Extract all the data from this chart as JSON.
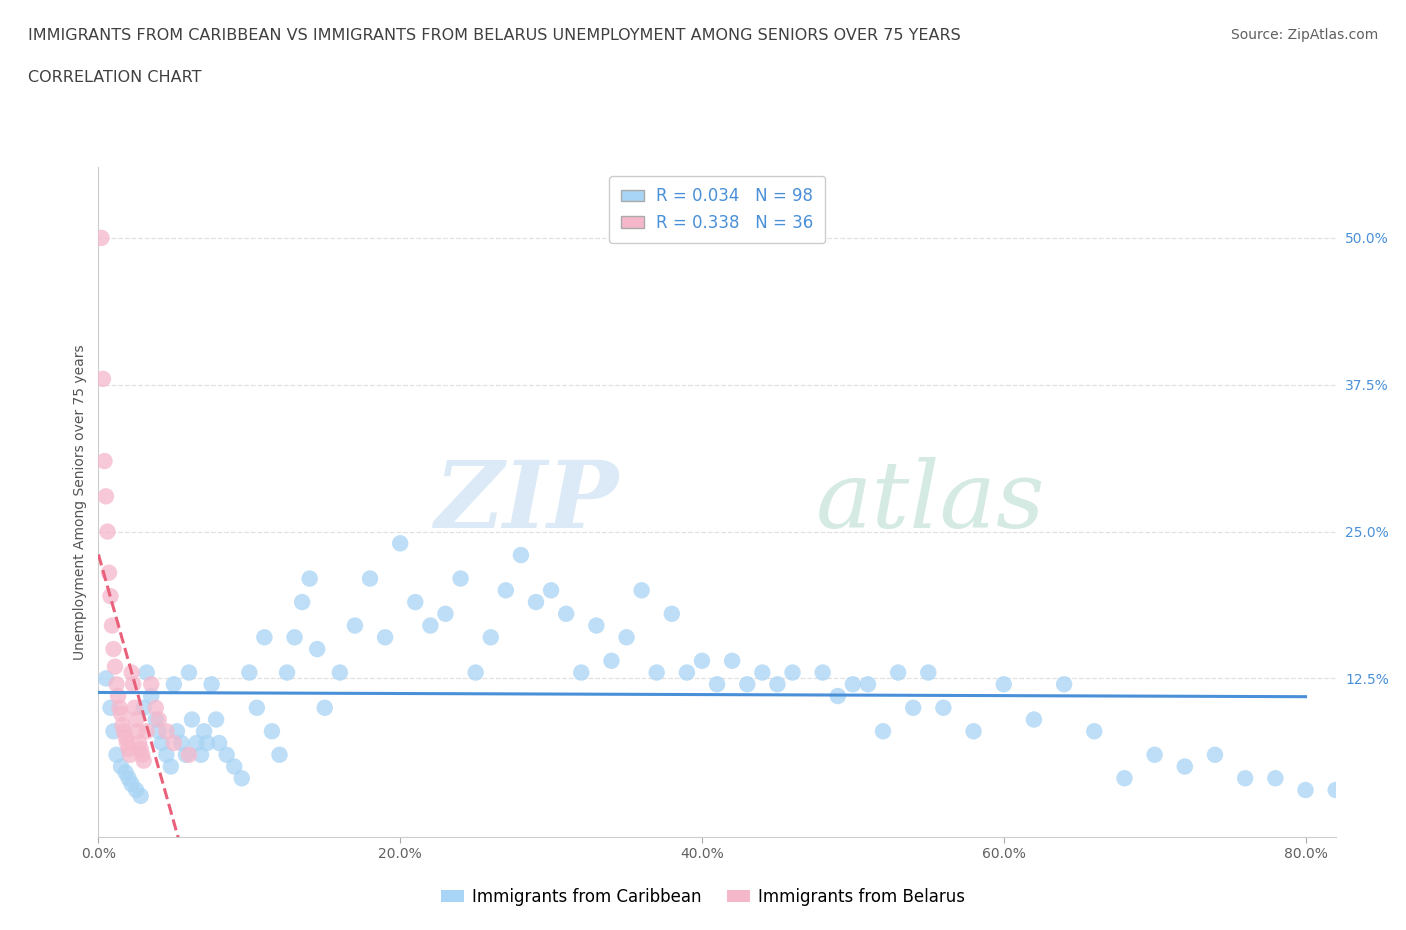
{
  "title_line1": "IMMIGRANTS FROM CARIBBEAN VS IMMIGRANTS FROM BELARUS UNEMPLOYMENT AMONG SENIORS OVER 75 YEARS",
  "title_line2": "CORRELATION CHART",
  "source_text": "Source: ZipAtlas.com",
  "ylabel": "Unemployment Among Seniors over 75 years",
  "watermark_zip": "ZIP",
  "watermark_atlas": "atlas",
  "legend_r1": "R = 0.034",
  "legend_n1": "N = 98",
  "legend_r2": "R = 0.338",
  "legend_n2": "N = 36",
  "legend_label1": "Immigrants from Caribbean",
  "legend_label2": "Immigrants from Belarus",
  "color_caribbean": "#a8d4f5",
  "color_belarus": "#f5b8cb",
  "color_line_caribbean": "#4a90d9",
  "color_line_belarus": "#e8607a",
  "color_title": "#404040",
  "color_source": "#606060",
  "color_legend_text": "#4a90d9",
  "color_ytick": "#4a90d9",
  "color_xtick": "#606060",
  "xlim": [
    0.0,
    0.82
  ],
  "ylim": [
    -0.01,
    0.56
  ],
  "xticks": [
    0.0,
    0.2,
    0.4,
    0.6,
    0.8
  ],
  "xtick_labels": [
    "0.0%",
    "20.0%",
    "40.0%",
    "60.0%",
    "80.0%"
  ],
  "yticks": [
    0.125,
    0.25,
    0.375,
    0.5
  ],
  "ytick_labels": [
    "12.5%",
    "25.0%",
    "37.5%",
    "50.0%"
  ],
  "caribbean_x": [
    0.005,
    0.008,
    0.01,
    0.012,
    0.015,
    0.018,
    0.02,
    0.022,
    0.025,
    0.028,
    0.03,
    0.032,
    0.035,
    0.038,
    0.04,
    0.042,
    0.045,
    0.048,
    0.05,
    0.052,
    0.055,
    0.058,
    0.06,
    0.062,
    0.065,
    0.068,
    0.07,
    0.072,
    0.075,
    0.078,
    0.08,
    0.085,
    0.09,
    0.095,
    0.1,
    0.105,
    0.11,
    0.115,
    0.12,
    0.125,
    0.13,
    0.135,
    0.14,
    0.145,
    0.15,
    0.16,
    0.17,
    0.18,
    0.19,
    0.2,
    0.21,
    0.22,
    0.23,
    0.24,
    0.25,
    0.26,
    0.27,
    0.28,
    0.29,
    0.3,
    0.31,
    0.32,
    0.33,
    0.34,
    0.35,
    0.36,
    0.37,
    0.38,
    0.39,
    0.4,
    0.41,
    0.42,
    0.43,
    0.44,
    0.45,
    0.46,
    0.48,
    0.49,
    0.5,
    0.51,
    0.52,
    0.53,
    0.54,
    0.55,
    0.56,
    0.58,
    0.6,
    0.62,
    0.64,
    0.66,
    0.68,
    0.7,
    0.72,
    0.74,
    0.76,
    0.78,
    0.8,
    0.82
  ],
  "caribbean_y": [
    0.125,
    0.1,
    0.08,
    0.06,
    0.05,
    0.045,
    0.04,
    0.035,
    0.03,
    0.025,
    0.1,
    0.13,
    0.11,
    0.09,
    0.08,
    0.07,
    0.06,
    0.05,
    0.12,
    0.08,
    0.07,
    0.06,
    0.13,
    0.09,
    0.07,
    0.06,
    0.08,
    0.07,
    0.12,
    0.09,
    0.07,
    0.06,
    0.05,
    0.04,
    0.13,
    0.1,
    0.16,
    0.08,
    0.06,
    0.13,
    0.16,
    0.19,
    0.21,
    0.15,
    0.1,
    0.13,
    0.17,
    0.21,
    0.16,
    0.24,
    0.19,
    0.17,
    0.18,
    0.21,
    0.13,
    0.16,
    0.2,
    0.23,
    0.19,
    0.2,
    0.18,
    0.13,
    0.17,
    0.14,
    0.16,
    0.2,
    0.13,
    0.18,
    0.13,
    0.14,
    0.12,
    0.14,
    0.12,
    0.13,
    0.12,
    0.13,
    0.13,
    0.11,
    0.12,
    0.12,
    0.08,
    0.13,
    0.1,
    0.13,
    0.1,
    0.08,
    0.12,
    0.09,
    0.12,
    0.08,
    0.04,
    0.06,
    0.05,
    0.06,
    0.04,
    0.04,
    0.03,
    0.03
  ],
  "belarus_x": [
    0.002,
    0.003,
    0.004,
    0.005,
    0.006,
    0.007,
    0.008,
    0.009,
    0.01,
    0.011,
    0.012,
    0.013,
    0.014,
    0.015,
    0.016,
    0.017,
    0.018,
    0.019,
    0.02,
    0.021,
    0.022,
    0.023,
    0.024,
    0.025,
    0.026,
    0.027,
    0.028,
    0.029,
    0.03,
    0.032,
    0.035,
    0.038,
    0.04,
    0.045,
    0.05,
    0.06
  ],
  "belarus_y": [
    0.5,
    0.38,
    0.31,
    0.28,
    0.25,
    0.215,
    0.195,
    0.17,
    0.15,
    0.135,
    0.12,
    0.11,
    0.1,
    0.095,
    0.085,
    0.08,
    0.075,
    0.07,
    0.065,
    0.06,
    0.13,
    0.12,
    0.1,
    0.09,
    0.08,
    0.07,
    0.065,
    0.06,
    0.055,
    0.08,
    0.12,
    0.1,
    0.09,
    0.08,
    0.07,
    0.06
  ],
  "grid_color": "#e0e0e0",
  "title_fontsize": 11.5,
  "source_fontsize": 10,
  "axis_label_fontsize": 10,
  "tick_fontsize": 10,
  "legend_fontsize": 12
}
